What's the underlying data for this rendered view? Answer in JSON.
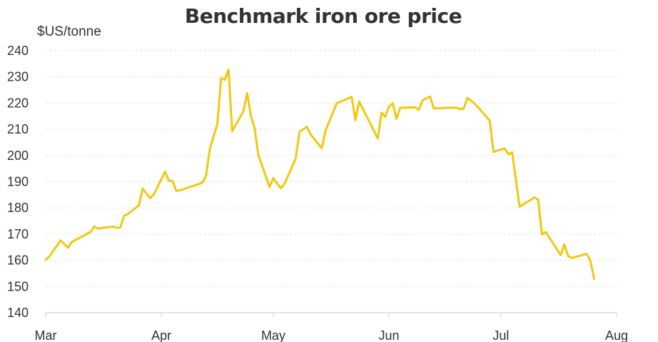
{
  "chart_data": {
    "type": "line",
    "title": "Benchmark iron ore price",
    "ylabel": "$US/tonne",
    "xlabel": "",
    "ylim": [
      140,
      240
    ],
    "yticks": [
      140,
      150,
      160,
      170,
      180,
      190,
      200,
      210,
      220,
      230,
      240
    ],
    "xlim": [
      "2021-03-01",
      "2021-08-01"
    ],
    "xticks": [
      {
        "date": "2021-03-01",
        "label": "Mar"
      },
      {
        "date": "2021-04-01",
        "label": "Apr"
      },
      {
        "date": "2021-05-01",
        "label": "May"
      },
      {
        "date": "2021-06-01",
        "label": "Jun"
      },
      {
        "date": "2021-07-01",
        "label": "Jul"
      },
      {
        "date": "2021-08-01",
        "label": "Aug"
      }
    ],
    "grid": "horizontal dashed",
    "line_color": "#f2c80f",
    "series": [
      {
        "points": [
          [
            "2021-03-01",
            160.2
          ],
          [
            "2021-03-02",
            161.5
          ],
          [
            "2021-03-05",
            167.6
          ],
          [
            "2021-03-07",
            164.8
          ],
          [
            "2021-03-08",
            167.0
          ],
          [
            "2021-03-13",
            170.8
          ],
          [
            "2021-03-14",
            172.9
          ],
          [
            "2021-03-15",
            172.1
          ],
          [
            "2021-03-19",
            172.9
          ],
          [
            "2021-03-20",
            172.4
          ],
          [
            "2021-03-21",
            172.5
          ],
          [
            "2021-03-22",
            177.0
          ],
          [
            "2021-03-23",
            177.6
          ],
          [
            "2021-03-26",
            181.0
          ],
          [
            "2021-03-27",
            187.4
          ],
          [
            "2021-03-29",
            183.7
          ],
          [
            "2021-03-30",
            185.1
          ],
          [
            "2021-04-02",
            193.9
          ],
          [
            "2021-04-03",
            190.3
          ],
          [
            "2021-04-04",
            190.3
          ],
          [
            "2021-04-05",
            186.5
          ],
          [
            "2021-04-06",
            186.7
          ],
          [
            "2021-04-12",
            189.6
          ],
          [
            "2021-04-13",
            192.4
          ],
          [
            "2021-04-14",
            202.6
          ],
          [
            "2021-04-16",
            212.1
          ],
          [
            "2021-04-17",
            229.5
          ],
          [
            "2021-04-18",
            228.9
          ],
          [
            "2021-04-19",
            232.8
          ],
          [
            "2021-04-20",
            209.3
          ],
          [
            "2021-04-23",
            216.9
          ],
          [
            "2021-04-24",
            223.8
          ],
          [
            "2021-04-25",
            215.1
          ],
          [
            "2021-04-26",
            210.4
          ],
          [
            "2021-04-27",
            200.1
          ],
          [
            "2021-04-30",
            188.0
          ],
          [
            "2021-05-01",
            191.4
          ],
          [
            "2021-05-03",
            187.5
          ],
          [
            "2021-05-04",
            189.2
          ],
          [
            "2021-05-07",
            198.8
          ],
          [
            "2021-05-08",
            209.0
          ],
          [
            "2021-05-10",
            211.0
          ],
          [
            "2021-05-11",
            208.0
          ],
          [
            "2021-05-14",
            202.8
          ],
          [
            "2021-05-15",
            209.5
          ],
          [
            "2021-05-18",
            219.9
          ],
          [
            "2021-05-22",
            222.4
          ],
          [
            "2021-05-23",
            213.5
          ],
          [
            "2021-05-24",
            220.6
          ],
          [
            "2021-05-29",
            206.5
          ],
          [
            "2021-05-30",
            216.4
          ],
          [
            "2021-05-31",
            214.8
          ],
          [
            "2021-06-01",
            218.6
          ],
          [
            "2021-06-02",
            219.9
          ],
          [
            "2021-06-03",
            214.0
          ],
          [
            "2021-06-04",
            218.2
          ],
          [
            "2021-06-08",
            218.4
          ],
          [
            "2021-06-09",
            217.4
          ],
          [
            "2021-06-10",
            221.1
          ],
          [
            "2021-06-12",
            222.5
          ],
          [
            "2021-06-13",
            218.0
          ],
          [
            "2021-06-19",
            218.3
          ],
          [
            "2021-06-20",
            217.7
          ],
          [
            "2021-06-21",
            217.8
          ],
          [
            "2021-06-22",
            222.0
          ],
          [
            "2021-06-24",
            219.8
          ],
          [
            "2021-06-28",
            213.3
          ],
          [
            "2021-06-29",
            201.4
          ],
          [
            "2021-07-02",
            202.7
          ],
          [
            "2021-07-03",
            200.5
          ],
          [
            "2021-07-04",
            201.2
          ],
          [
            "2021-07-06",
            180.5
          ],
          [
            "2021-07-10",
            184.0
          ],
          [
            "2021-07-11",
            183.1
          ],
          [
            "2021-07-12",
            169.9
          ],
          [
            "2021-07-13",
            170.8
          ],
          [
            "2021-07-17",
            162.0
          ],
          [
            "2021-07-18",
            166.1
          ],
          [
            "2021-07-19",
            161.6
          ],
          [
            "2021-07-20",
            160.9
          ],
          [
            "2021-07-24",
            162.5
          ],
          [
            "2021-07-25",
            159.6
          ],
          [
            "2021-07-26",
            152.9
          ]
        ]
      }
    ]
  }
}
